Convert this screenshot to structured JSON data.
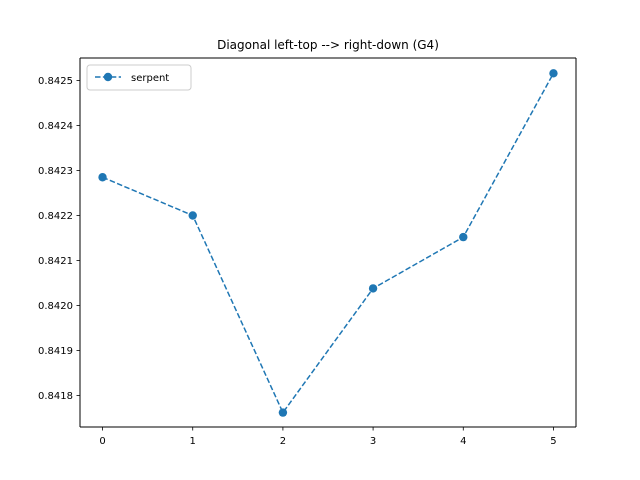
{
  "chart_data": {
    "type": "line",
    "title": "Diagonal left-top --> right-down (G4)",
    "xlabel": "",
    "ylabel": "",
    "x": [
      0,
      1,
      2,
      3,
      4,
      5
    ],
    "series": [
      {
        "name": "serpent",
        "values": [
          0.842285,
          0.8422,
          0.841762,
          0.842038,
          0.842152,
          0.842516
        ],
        "color": "#1f77b4",
        "line_style": "dashed",
        "marker": "circle"
      }
    ],
    "xlim": [
      -0.25,
      5.25
    ],
    "ylim": [
      0.84173,
      0.84255
    ],
    "x_ticks": [
      0,
      1,
      2,
      3,
      4,
      5
    ],
    "x_tick_labels": [
      "0",
      "1",
      "2",
      "3",
      "4",
      "5"
    ],
    "y_ticks": [
      0.8418,
      0.8419,
      0.842,
      0.8421,
      0.8422,
      0.8423,
      0.8424,
      0.8425
    ],
    "y_tick_labels": [
      "0.8418",
      "0.8419",
      "0.8420",
      "0.8421",
      "0.8422",
      "0.8423",
      "0.8424",
      "0.8425"
    ],
    "grid": false,
    "legend_position": "top-left"
  }
}
